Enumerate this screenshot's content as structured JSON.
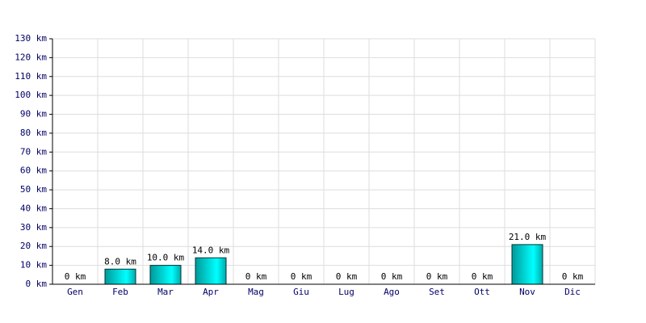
{
  "chart_data": {
    "type": "bar",
    "categories": [
      "Gen",
      "Feb",
      "Mar",
      "Apr",
      "Mag",
      "Giu",
      "Lug",
      "Ago",
      "Set",
      "Ott",
      "Nov",
      "Dic"
    ],
    "values": [
      0,
      8,
      10,
      14,
      0,
      0,
      0,
      0,
      0,
      0,
      21,
      0
    ],
    "value_labels": [
      "0 km",
      "8.0 km",
      "10.0 km",
      "14.0 km",
      "0 km",
      "0 km",
      "0 km",
      "0 km",
      "0 km",
      "0 km",
      "21.0 km",
      "0 km"
    ],
    "color": "#00cccc",
    "ylim": [
      0,
      130
    ],
    "yticks": [
      {
        "value": 0,
        "label": "0 km"
      },
      {
        "value": 10,
        "label": "10 km"
      },
      {
        "value": 20,
        "label": "20 km"
      },
      {
        "value": 30,
        "label": "30 km"
      },
      {
        "value": 40,
        "label": "40 km"
      },
      {
        "value": 50,
        "label": "50 km"
      },
      {
        "value": 60,
        "label": "60 km"
      },
      {
        "value": 70,
        "label": "70 km"
      },
      {
        "value": 80,
        "label": "80 km"
      },
      {
        "value": 90,
        "label": "90 km"
      },
      {
        "value": 100,
        "label": "100 km"
      },
      {
        "value": 110,
        "label": "110 km"
      },
      {
        "value": 120,
        "label": "120 km"
      },
      {
        "value": 130,
        "label": "130 km"
      }
    ],
    "grid": true
  }
}
